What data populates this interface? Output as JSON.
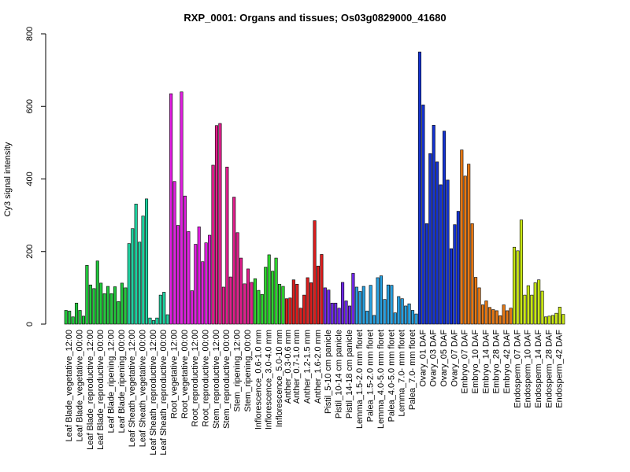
{
  "chart_data": {
    "type": "bar",
    "title": "RXP_0001: Organs and tissues; Os03g0829000_41680",
    "xlabel": "",
    "ylabel": "Cy3 signal intensity",
    "ylim": [
      0,
      800
    ],
    "yticks": [
      0,
      200,
      400,
      600,
      800
    ],
    "grid": false,
    "legend": "none",
    "group_labels": [
      "Leaf Blade_vegetative_12:00",
      "Leaf Blade_vegetative_00:00",
      "Leaf Blade_reproductive_12:00",
      "Leaf Blade_reproductive_00:00",
      "Leaf Blade_ripening_12:00",
      "Leaf Blade_ripening_00:00",
      "Leaf Sheath_vegetative_12:00",
      "Leaf Sheath_vegetative_00:00",
      "Leaf Sheath_reproductive_12:00",
      "Leaf Sheath_reproductive_00:00",
      "Root_vegetative_12:00",
      "Root_vegetative_00:00",
      "Root_reproductive_12:00",
      "Root_reproductive_00:00",
      "Stem_reproductive_12:00",
      "Stem_reproductive_00:00",
      "Stem_ripening_12:00",
      "Stem_ripening_00:00",
      "Inflorescence_0.6-1.0 mm",
      "Inflorescence_3.0-4.0 mm",
      "Inflorescence_5.0-10 mm",
      "Anther_0.3-0.6 mm",
      "Anther_0.7-1.0 mm",
      "Anther_1.2-1.5 mm",
      "Anther_1.6-2.0 mm",
      "Pistil_5-10 cm panicle",
      "Pistil_10-14 cm panicle",
      "Pistil_14-18 cm panicle",
      "Lemma_1.5-2.0 mm floret",
      "Palea_1.5-2.0 mm floret",
      "Lemma_4.0-5.0 mm floret",
      "Palea_4.0-5.0 mm floret",
      "Lemma_7.0- mm floret",
      "Palea_7.0- mm floret",
      "Ovary_01 DAF",
      "Ovary_03 DAF",
      "Ovary_05 DAF",
      "Ovary_07 DAF",
      "Embryo_07 DAF",
      "Embryo_10 DAF",
      "Embryo_14 DAF",
      "Embryo_28 DAF",
      "Embryo_42 DAF",
      "Endosperm_07 DAF",
      "Endosperm_10 DAF",
      "Endosperm_14 DAF",
      "Endosperm_28 DAF",
      "Endosperm_42 DAF"
    ],
    "bars": [
      {
        "group": 0,
        "value": 38,
        "color": "#22c83c"
      },
      {
        "group": 0,
        "value": 36,
        "color": "#22c83c"
      },
      {
        "group": 0,
        "value": 20,
        "color": "#22c83c"
      },
      {
        "group": 1,
        "value": 58,
        "color": "#22c83c"
      },
      {
        "group": 1,
        "value": 38,
        "color": "#22c83c"
      },
      {
        "group": 1,
        "value": 22,
        "color": "#22c83c"
      },
      {
        "group": 2,
        "value": 162,
        "color": "#22c83c"
      },
      {
        "group": 2,
        "value": 108,
        "color": "#22c83c"
      },
      {
        "group": 2,
        "value": 98,
        "color": "#22c83c"
      },
      {
        "group": 3,
        "value": 174,
        "color": "#22c83c"
      },
      {
        "group": 3,
        "value": 113,
        "color": "#22c83c"
      },
      {
        "group": 3,
        "value": 84,
        "color": "#22c83c"
      },
      {
        "group": 4,
        "value": 104,
        "color": "#22c83c"
      },
      {
        "group": 4,
        "value": 84,
        "color": "#22c83c"
      },
      {
        "group": 4,
        "value": 103,
        "color": "#22c83c"
      },
      {
        "group": 5,
        "value": 62,
        "color": "#22c83c"
      },
      {
        "group": 5,
        "value": 113,
        "color": "#22c83c"
      },
      {
        "group": 5,
        "value": 100,
        "color": "#22c83c"
      },
      {
        "group": 6,
        "value": 222,
        "color": "#1fd2a0"
      },
      {
        "group": 6,
        "value": 263,
        "color": "#1fd2a0"
      },
      {
        "group": 6,
        "value": 331,
        "color": "#1fd2a0"
      },
      {
        "group": 7,
        "value": 226,
        "color": "#1fd2a0"
      },
      {
        "group": 7,
        "value": 298,
        "color": "#1fd2a0"
      },
      {
        "group": 7,
        "value": 345,
        "color": "#1fd2a0"
      },
      {
        "group": 8,
        "value": 17,
        "color": "#1fd2a0"
      },
      {
        "group": 8,
        "value": 10,
        "color": "#1fd2a0"
      },
      {
        "group": 8,
        "value": 17,
        "color": "#1fd2a0"
      },
      {
        "group": 9,
        "value": 80,
        "color": "#1fd2a0"
      },
      {
        "group": 9,
        "value": 88,
        "color": "#1fd2a0"
      },
      {
        "group": 9,
        "value": 26,
        "color": "#1fd2a0"
      },
      {
        "group": 10,
        "value": 635,
        "color": "#e01ee0"
      },
      {
        "group": 10,
        "value": 393,
        "color": "#e01ee0"
      },
      {
        "group": 10,
        "value": 272,
        "color": "#e01ee0"
      },
      {
        "group": 11,
        "value": 640,
        "color": "#e01ee0"
      },
      {
        "group": 11,
        "value": 353,
        "color": "#e01ee0"
      },
      {
        "group": 11,
        "value": 255,
        "color": "#e01ee0"
      },
      {
        "group": 12,
        "value": 92,
        "color": "#e01ee0"
      },
      {
        "group": 12,
        "value": 220,
        "color": "#e01ee0"
      },
      {
        "group": 12,
        "value": 268,
        "color": "#e01ee0"
      },
      {
        "group": 13,
        "value": 172,
        "color": "#e01ee0"
      },
      {
        "group": 13,
        "value": 224,
        "color": "#e01ee0"
      },
      {
        "group": 13,
        "value": 245,
        "color": "#e01ee0"
      },
      {
        "group": 14,
        "value": 438,
        "color": "#e01e8c"
      },
      {
        "group": 14,
        "value": 547,
        "color": "#e01e8c"
      },
      {
        "group": 14,
        "value": 553,
        "color": "#e01e8c"
      },
      {
        "group": 15,
        "value": 102,
        "color": "#e01e8c"
      },
      {
        "group": 15,
        "value": 433,
        "color": "#e01e8c"
      },
      {
        "group": 15,
        "value": 130,
        "color": "#e01e8c"
      },
      {
        "group": 16,
        "value": 350,
        "color": "#e01e8c"
      },
      {
        "group": 16,
        "value": 252,
        "color": "#e01e8c"
      },
      {
        "group": 16,
        "value": 182,
        "color": "#e01e8c"
      },
      {
        "group": 17,
        "value": 111,
        "color": "#e01e8c"
      },
      {
        "group": 17,
        "value": 152,
        "color": "#e01e8c"
      },
      {
        "group": 17,
        "value": 115,
        "color": "#e01e8c"
      },
      {
        "group": 18,
        "value": 125,
        "color": "#2ed52e"
      },
      {
        "group": 18,
        "value": 93,
        "color": "#2ed52e"
      },
      {
        "group": 18,
        "value": 82,
        "color": "#2ed52e"
      },
      {
        "group": 19,
        "value": 157,
        "color": "#2ed52e"
      },
      {
        "group": 19,
        "value": 191,
        "color": "#2ed52e"
      },
      {
        "group": 19,
        "value": 146,
        "color": "#2ed52e"
      },
      {
        "group": 20,
        "value": 182,
        "color": "#2ed52e"
      },
      {
        "group": 20,
        "value": 110,
        "color": "#2ed52e"
      },
      {
        "group": 20,
        "value": 104,
        "color": "#2ed52e"
      },
      {
        "group": 21,
        "value": 70,
        "color": "#dc1e1e"
      },
      {
        "group": 21,
        "value": 72,
        "color": "#dc1e1e"
      },
      {
        "group": 22,
        "value": 122,
        "color": "#dc1e1e"
      },
      {
        "group": 22,
        "value": 110,
        "color": "#dc1e1e"
      },
      {
        "group": 22,
        "value": 44,
        "color": "#dc1e1e"
      },
      {
        "group": 23,
        "value": 80,
        "color": "#dc1e1e"
      },
      {
        "group": 23,
        "value": 128,
        "color": "#dc1e1e"
      },
      {
        "group": 23,
        "value": 114,
        "color": "#dc1e1e"
      },
      {
        "group": 24,
        "value": 285,
        "color": "#dc1e1e"
      },
      {
        "group": 24,
        "value": 160,
        "color": "#dc1e1e"
      },
      {
        "group": 24,
        "value": 192,
        "color": "#dc1e1e"
      },
      {
        "group": 25,
        "value": 100,
        "color": "#6e28e6"
      },
      {
        "group": 25,
        "value": 94,
        "color": "#6e28e6"
      },
      {
        "group": 25,
        "value": 58,
        "color": "#6e28e6"
      },
      {
        "group": 26,
        "value": 58,
        "color": "#6e28e6"
      },
      {
        "group": 26,
        "value": 44,
        "color": "#6e28e6"
      },
      {
        "group": 26,
        "value": 115,
        "color": "#6e28e6"
      },
      {
        "group": 27,
        "value": 64,
        "color": "#6e28e6"
      },
      {
        "group": 27,
        "value": 50,
        "color": "#6e28e6"
      },
      {
        "group": 27,
        "value": 140,
        "color": "#6e28e6"
      },
      {
        "group": 28,
        "value": 102,
        "color": "#28a0e0"
      },
      {
        "group": 28,
        "value": 90,
        "color": "#28a0e0"
      },
      {
        "group": 28,
        "value": 104,
        "color": "#28a0e0"
      },
      {
        "group": 29,
        "value": 36,
        "color": "#28a0e0"
      },
      {
        "group": 29,
        "value": 107,
        "color": "#28a0e0"
      },
      {
        "group": 29,
        "value": 24,
        "color": "#28a0e0"
      },
      {
        "group": 30,
        "value": 128,
        "color": "#28a0e0"
      },
      {
        "group": 30,
        "value": 133,
        "color": "#28a0e0"
      },
      {
        "group": 30,
        "value": 68,
        "color": "#28a0e0"
      },
      {
        "group": 31,
        "value": 108,
        "color": "#28a0e0"
      },
      {
        "group": 31,
        "value": 107,
        "color": "#28a0e0"
      },
      {
        "group": 31,
        "value": 31,
        "color": "#28a0e0"
      },
      {
        "group": 32,
        "value": 76,
        "color": "#28a0e0"
      },
      {
        "group": 32,
        "value": 70,
        "color": "#28a0e0"
      },
      {
        "group": 32,
        "value": 50,
        "color": "#28a0e0"
      },
      {
        "group": 33,
        "value": 56,
        "color": "#28a0e0"
      },
      {
        "group": 33,
        "value": 38,
        "color": "#28a0e0"
      },
      {
        "group": 33,
        "value": 28,
        "color": "#28a0e0"
      },
      {
        "group": 34,
        "value": 750,
        "color": "#1432d2"
      },
      {
        "group": 34,
        "value": 604,
        "color": "#1432d2"
      },
      {
        "group": 34,
        "value": 277,
        "color": "#1432d2"
      },
      {
        "group": 35,
        "value": 470,
        "color": "#1432d2"
      },
      {
        "group": 35,
        "value": 548,
        "color": "#1432d2"
      },
      {
        "group": 35,
        "value": 447,
        "color": "#1432d2"
      },
      {
        "group": 36,
        "value": 384,
        "color": "#1432d2"
      },
      {
        "group": 36,
        "value": 532,
        "color": "#1432d2"
      },
      {
        "group": 36,
        "value": 397,
        "color": "#1432d2"
      },
      {
        "group": 37,
        "value": 208,
        "color": "#1432d2"
      },
      {
        "group": 37,
        "value": 274,
        "color": "#1432d2"
      },
      {
        "group": 37,
        "value": 311,
        "color": "#1432d2"
      },
      {
        "group": 38,
        "value": 480,
        "color": "#e67814"
      },
      {
        "group": 38,
        "value": 408,
        "color": "#e67814"
      },
      {
        "group": 38,
        "value": 441,
        "color": "#e67814"
      },
      {
        "group": 39,
        "value": 277,
        "color": "#e67814"
      },
      {
        "group": 39,
        "value": 129,
        "color": "#e67814"
      },
      {
        "group": 39,
        "value": 100,
        "color": "#e67814"
      },
      {
        "group": 40,
        "value": 53,
        "color": "#e67814"
      },
      {
        "group": 40,
        "value": 64,
        "color": "#e67814"
      },
      {
        "group": 40,
        "value": 46,
        "color": "#e67814"
      },
      {
        "group": 41,
        "value": 40,
        "color": "#e67814"
      },
      {
        "group": 41,
        "value": 37,
        "color": "#e67814"
      },
      {
        "group": 41,
        "value": 23,
        "color": "#e67814"
      },
      {
        "group": 42,
        "value": 53,
        "color": "#e67814"
      },
      {
        "group": 42,
        "value": 37,
        "color": "#e67814"
      },
      {
        "group": 42,
        "value": 44,
        "color": "#e67814"
      },
      {
        "group": 43,
        "value": 212,
        "color": "#c8e614"
      },
      {
        "group": 43,
        "value": 202,
        "color": "#c8e614"
      },
      {
        "group": 43,
        "value": 287,
        "color": "#c8e614"
      },
      {
        "group": 44,
        "value": 80,
        "color": "#c8e614"
      },
      {
        "group": 44,
        "value": 106,
        "color": "#c8e614"
      },
      {
        "group": 44,
        "value": 80,
        "color": "#c8e614"
      },
      {
        "group": 45,
        "value": 114,
        "color": "#c8e614"
      },
      {
        "group": 45,
        "value": 122,
        "color": "#c8e614"
      },
      {
        "group": 45,
        "value": 91,
        "color": "#c8e614"
      },
      {
        "group": 46,
        "value": 20,
        "color": "#c8e614"
      },
      {
        "group": 46,
        "value": 22,
        "color": "#c8e614"
      },
      {
        "group": 46,
        "value": 24,
        "color": "#c8e614"
      },
      {
        "group": 47,
        "value": 30,
        "color": "#c8e614"
      },
      {
        "group": 47,
        "value": 47,
        "color": "#c8e614"
      },
      {
        "group": 47,
        "value": 27,
        "color": "#c8e614"
      }
    ]
  }
}
